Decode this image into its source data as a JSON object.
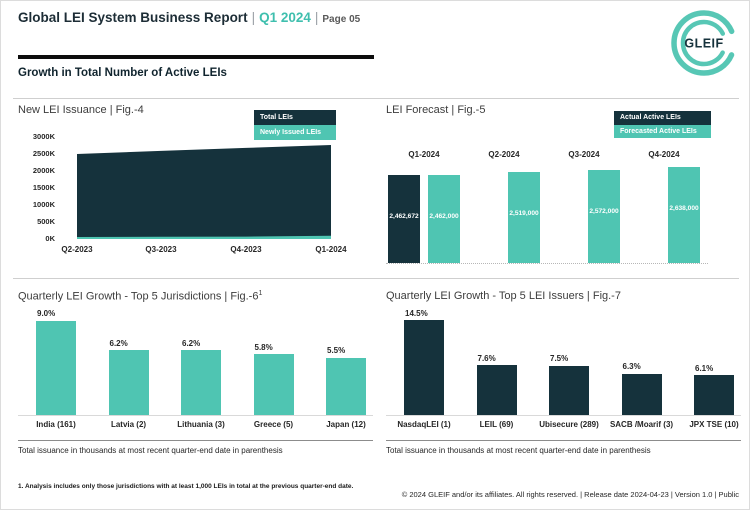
{
  "header": {
    "title": "Global LEI System Business Report",
    "separator": "|",
    "quarter": "Q1 2024",
    "page_label": "Page 05"
  },
  "logo": {
    "text": "GLEIF"
  },
  "section": {
    "heading": "Growth in Total Number of Active LEIs"
  },
  "colors": {
    "accent_teal": "#4FC5B2",
    "dark_teal": "#15323C",
    "text_dark": "#262626"
  },
  "chart_data": [
    {
      "id": "fig4",
      "type": "area",
      "title": "New LEI Issuance | Fig.-4",
      "categories": [
        "Q2-2023",
        "Q3-2023",
        "Q4-2023",
        "Q1-2024"
      ],
      "series": [
        {
          "name": "Total LEIs",
          "color": "#15323C",
          "values_thousands": [
            2500,
            2590,
            2680,
            2765
          ]
        },
        {
          "name": "Newly Issued LEIs",
          "color": "#4FC5B2",
          "values_thousands": [
            60,
            65,
            72,
            95
          ]
        }
      ],
      "y_ticks": [
        "3000K",
        "2500K",
        "2000K",
        "1500K",
        "1000K",
        "500K",
        "0K"
      ],
      "ylim_thousands": [
        0,
        3000
      ],
      "legend_position": "top-right",
      "grid": false
    },
    {
      "id": "fig5",
      "type": "bar",
      "title": "LEI Forecast | Fig.-5",
      "categories": [
        "Q1-2024",
        "Q2-2024",
        "Q3-2024",
        "Q4-2024"
      ],
      "series": [
        {
          "name": "Actual Active LEIs",
          "color": "#15323C",
          "values": [
            2462672,
            null,
            null,
            null
          ],
          "labels": [
            "2,462,672",
            null,
            null,
            null
          ]
        },
        {
          "name": "Forecasted Active LEIs",
          "color": "#4FC5B2",
          "values": [
            2462000,
            2519000,
            2572000,
            2638000
          ],
          "labels": [
            "2,462,000",
            "2,519,000",
            "2,572,000",
            "2,638,000"
          ]
        }
      ],
      "legend_position": "top-right",
      "value_labels_inside": true,
      "grid": false
    },
    {
      "id": "fig6",
      "type": "bar",
      "title": "Quarterly LEI Growth - Top 5 Jurisdictions | Fig.-6",
      "title_sup": "1",
      "categories": [
        "India (161)",
        "Latvia (2)",
        "Lithuania (3)",
        "Greece (5)",
        "Japan (12)"
      ],
      "values": [
        9.0,
        6.2,
        6.2,
        5.8,
        5.5
      ],
      "labels": [
        "9.0%",
        "6.2%",
        "6.2%",
        "5.8%",
        "5.5%"
      ],
      "bar_color": "#4FC5B2",
      "footnote": "Total issuance in thousands at most recent quarter-end date in parenthesis",
      "grid": false
    },
    {
      "id": "fig7",
      "type": "bar",
      "title": "Quarterly LEI Growth - Top 5 LEI Issuers | Fig.-7",
      "categories": [
        "NasdaqLEI (1)",
        "LEIL (69)",
        "Ubisecure (289)",
        "SACB /Moarif (3)",
        "JPX TSE (10)"
      ],
      "values": [
        14.5,
        7.6,
        7.5,
        6.3,
        6.1
      ],
      "labels": [
        "14.5%",
        "7.6%",
        "7.5%",
        "6.3%",
        "6.1%"
      ],
      "bar_color": "#15323C",
      "footnote": "Total issuance in thousands at most recent quarter-end date in parenthesis",
      "grid": false
    }
  ],
  "footer": {
    "footnote": "1. Analysis includes only those jurisdictions with at least 1,000 LEIs in total at the previous quarter-end date.",
    "copyright": "© 2024 GLEIF and/or its affiliates. All rights reserved. | Release date 2024-04-23 | Version 1.0 | Public"
  }
}
